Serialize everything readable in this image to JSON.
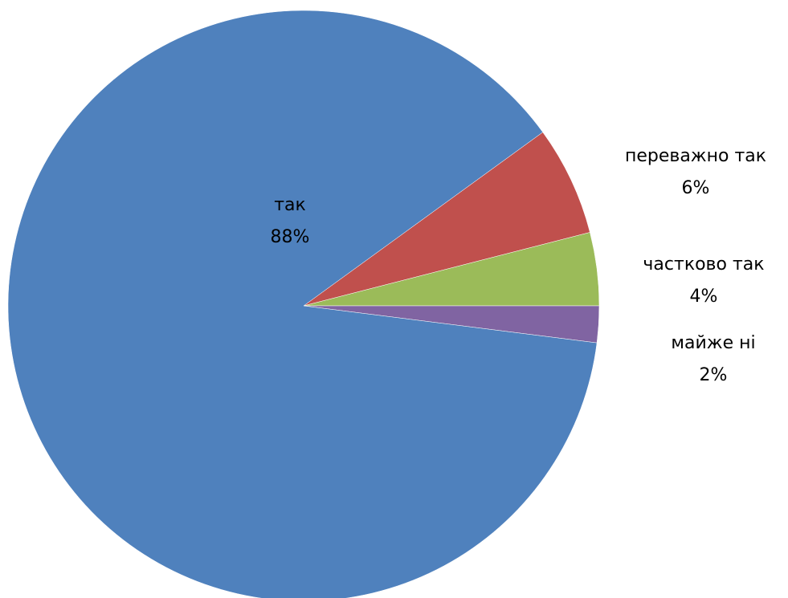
{
  "chart_data": {
    "type": "pie",
    "title": "",
    "categories": [
      "так",
      "переважно так",
      "частково так",
      "майже ні"
    ],
    "values": [
      88,
      6,
      4,
      2
    ],
    "value_labels": [
      "88%",
      "6%",
      "4%",
      "2%"
    ],
    "colors": [
      "#4F81BD",
      "#C0504D",
      "#9BBB59",
      "#8064A2"
    ],
    "legend": "none",
    "start_direction": "counterclockwise from right"
  }
}
